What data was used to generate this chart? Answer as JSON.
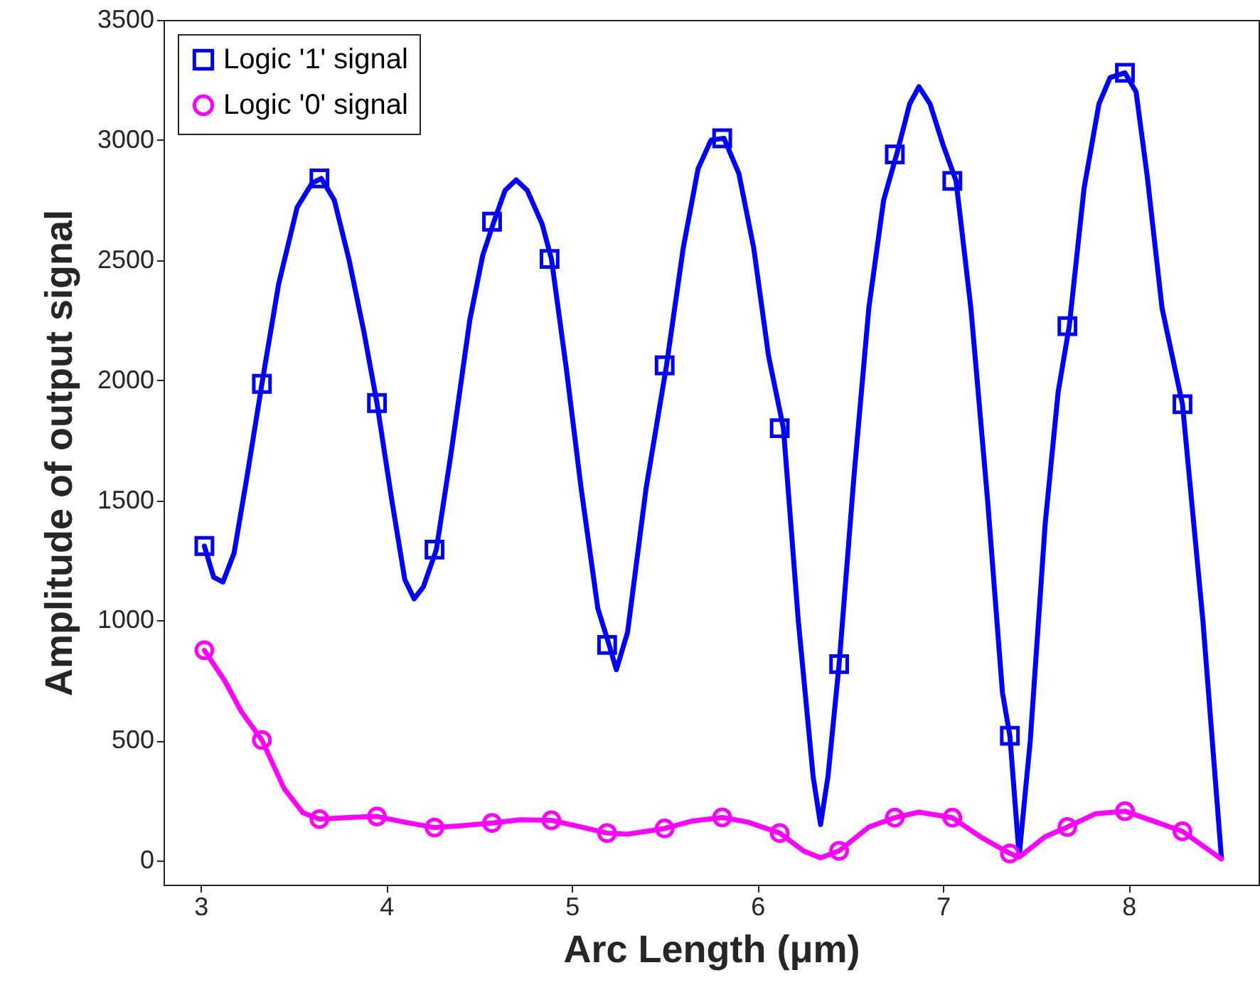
{
  "chart_data": {
    "type": "line",
    "xlabel": "Arc Length (μm)",
    "ylabel": "Amplitude of output signal",
    "xlim": [
      2.8,
      8.7
    ],
    "ylim": [
      -100,
      3500
    ],
    "xticks": [
      3,
      4,
      5,
      6,
      7,
      8
    ],
    "yticks": [
      0,
      500,
      1000,
      1500,
      2000,
      2500,
      3000,
      3500
    ],
    "grid": false,
    "legend": "top left",
    "line_style": "solid",
    "series": [
      {
        "name": "Logic '1' signal",
        "color": "#0000ff",
        "type": "line",
        "x": [
          3.02,
          3.07,
          3.12,
          3.18,
          3.25,
          3.33,
          3.42,
          3.52,
          3.6,
          3.65,
          3.72,
          3.8,
          3.88,
          3.95,
          4.03,
          4.1,
          4.15,
          4.2,
          4.27,
          4.35,
          4.45,
          4.52,
          4.58,
          4.64,
          4.7,
          4.76,
          4.84,
          4.89,
          4.97,
          5.05,
          5.14,
          5.2,
          5.24,
          5.3,
          5.4,
          5.51,
          5.6,
          5.68,
          5.75,
          5.82,
          5.9,
          5.98,
          6.06,
          6.14,
          6.22,
          6.3,
          6.34,
          6.38,
          6.44,
          6.52,
          6.6,
          6.68,
          6.75,
          6.82,
          6.87,
          6.93,
          7.0,
          7.07,
          7.15,
          7.24,
          7.32,
          7.36,
          7.41,
          7.47,
          7.55,
          7.62,
          7.68,
          7.76,
          7.84,
          7.9,
          7.98,
          8.04,
          8.1,
          8.18,
          8.29,
          8.4,
          8.5
        ],
        "values": [
          1310,
          1180,
          1160,
          1280,
          1600,
          1985,
          2400,
          2720,
          2820,
          2840,
          2750,
          2500,
          2200,
          1905,
          1500,
          1170,
          1090,
          1140,
          1295,
          1700,
          2250,
          2520,
          2660,
          2790,
          2834,
          2790,
          2650,
          2505,
          2050,
          1550,
          1050,
          900,
          795,
          950,
          1550,
          2062,
          2550,
          2880,
          3000,
          3007,
          2860,
          2550,
          2100,
          1800,
          1000,
          350,
          150,
          350,
          818,
          1600,
          2300,
          2750,
          2940,
          3150,
          3222,
          3150,
          2980,
          2830,
          2300,
          1500,
          700,
          520,
          20,
          500,
          1400,
          1950,
          2225,
          2800,
          3150,
          3260,
          3280,
          3200,
          2850,
          2300,
          1900,
          1000,
          10
        ]
      },
      {
        "color": "#0000ff",
        "type": "scatter",
        "marker": "square",
        "x": [
          3.02,
          3.33,
          3.64,
          3.95,
          4.26,
          4.57,
          4.88,
          5.19,
          5.5,
          5.81,
          6.12,
          6.44,
          6.74,
          7.05,
          7.36,
          7.67,
          7.98,
          8.29
        ],
        "values": [
          1310,
          1985,
          2840,
          1905,
          1295,
          2660,
          2505,
          898,
          2062,
          3007,
          1800,
          818,
          2940,
          2830,
          520,
          2225,
          3280,
          1900
        ]
      },
      {
        "name": "Logic '0' signal",
        "color": "#ff00ff",
        "type": "line",
        "x": [
          3.02,
          3.13,
          3.22,
          3.33,
          3.45,
          3.55,
          3.64,
          3.8,
          3.95,
          4.1,
          4.26,
          4.4,
          4.57,
          4.72,
          4.89,
          5.05,
          5.19,
          5.3,
          5.5,
          5.65,
          5.81,
          5.95,
          6.12,
          6.25,
          6.34,
          6.44,
          6.6,
          6.74,
          6.87,
          7.05,
          7.2,
          7.36,
          7.41,
          7.55,
          7.67,
          7.82,
          7.98,
          8.15,
          8.29,
          8.5
        ],
        "values": [
          876,
          749,
          620,
          502,
          300,
          200,
          173,
          180,
          184,
          160,
          138,
          145,
          157,
          170,
          168,
          140,
          115,
          110,
          134,
          165,
          180,
          160,
          115,
          40,
          12,
          41,
          140,
          179,
          202,
          179,
          100,
          30,
          15,
          100,
          140,
          195,
          206,
          160,
          122,
          7
        ]
      },
      {
        "color": "#ff00ff",
        "type": "scatter",
        "marker": "circle",
        "x": [
          3.02,
          3.33,
          3.64,
          3.95,
          4.26,
          4.57,
          4.89,
          5.19,
          5.5,
          5.81,
          6.12,
          6.44,
          6.74,
          7.05,
          7.36,
          7.67,
          7.98,
          8.29
        ],
        "values": [
          876,
          502,
          173,
          184,
          138,
          157,
          168,
          115,
          134,
          180,
          115,
          41,
          179,
          179,
          30,
          140,
          206,
          122
        ]
      }
    ]
  }
}
